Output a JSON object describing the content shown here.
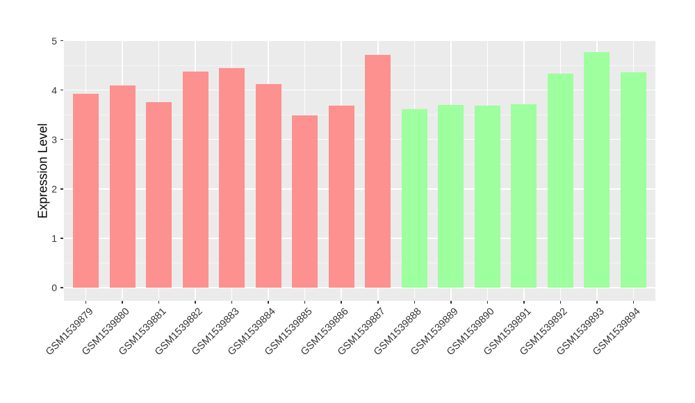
{
  "chart_data": {
    "type": "bar",
    "title": "",
    "ylabel": "Expression Level",
    "xlabel": "",
    "categories": [
      "GSM1539879",
      "GSM1539880",
      "GSM1539881",
      "GSM1539882",
      "GSM1539883",
      "GSM1539884",
      "GSM1539885",
      "GSM1539886",
      "GSM1539887",
      "GSM1539888",
      "GSM1539889",
      "GSM1539890",
      "GSM1539891",
      "GSM1539892",
      "GSM1539893",
      "GSM1539894"
    ],
    "values": [
      3.93,
      4.1,
      3.75,
      4.38,
      4.45,
      4.12,
      3.49,
      3.68,
      4.71,
      3.61,
      3.7,
      3.68,
      3.71,
      4.33,
      4.77,
      4.36
    ],
    "colors": [
      "#FC918F",
      "#FC918F",
      "#FC918F",
      "#FC918F",
      "#FC918F",
      "#FC918F",
      "#FC918F",
      "#FC918F",
      "#FC918F",
      "#9EFF9E",
      "#9EFF9E",
      "#9EFF9E",
      "#9EFF9E",
      "#9EFF9E",
      "#9EFF9E",
      "#9EFF9E"
    ],
    "ylim": [
      0,
      5
    ],
    "yticks": [
      0,
      1,
      2,
      3,
      4,
      5
    ],
    "grid": "major+minor",
    "legend": "none",
    "panel_background": "#EBEBEB",
    "gridline_color": "#FFFFFF",
    "tick_color": "#333333",
    "bar_color_group1": "#FC918F",
    "bar_color_group2": "#9EFF9E"
  }
}
